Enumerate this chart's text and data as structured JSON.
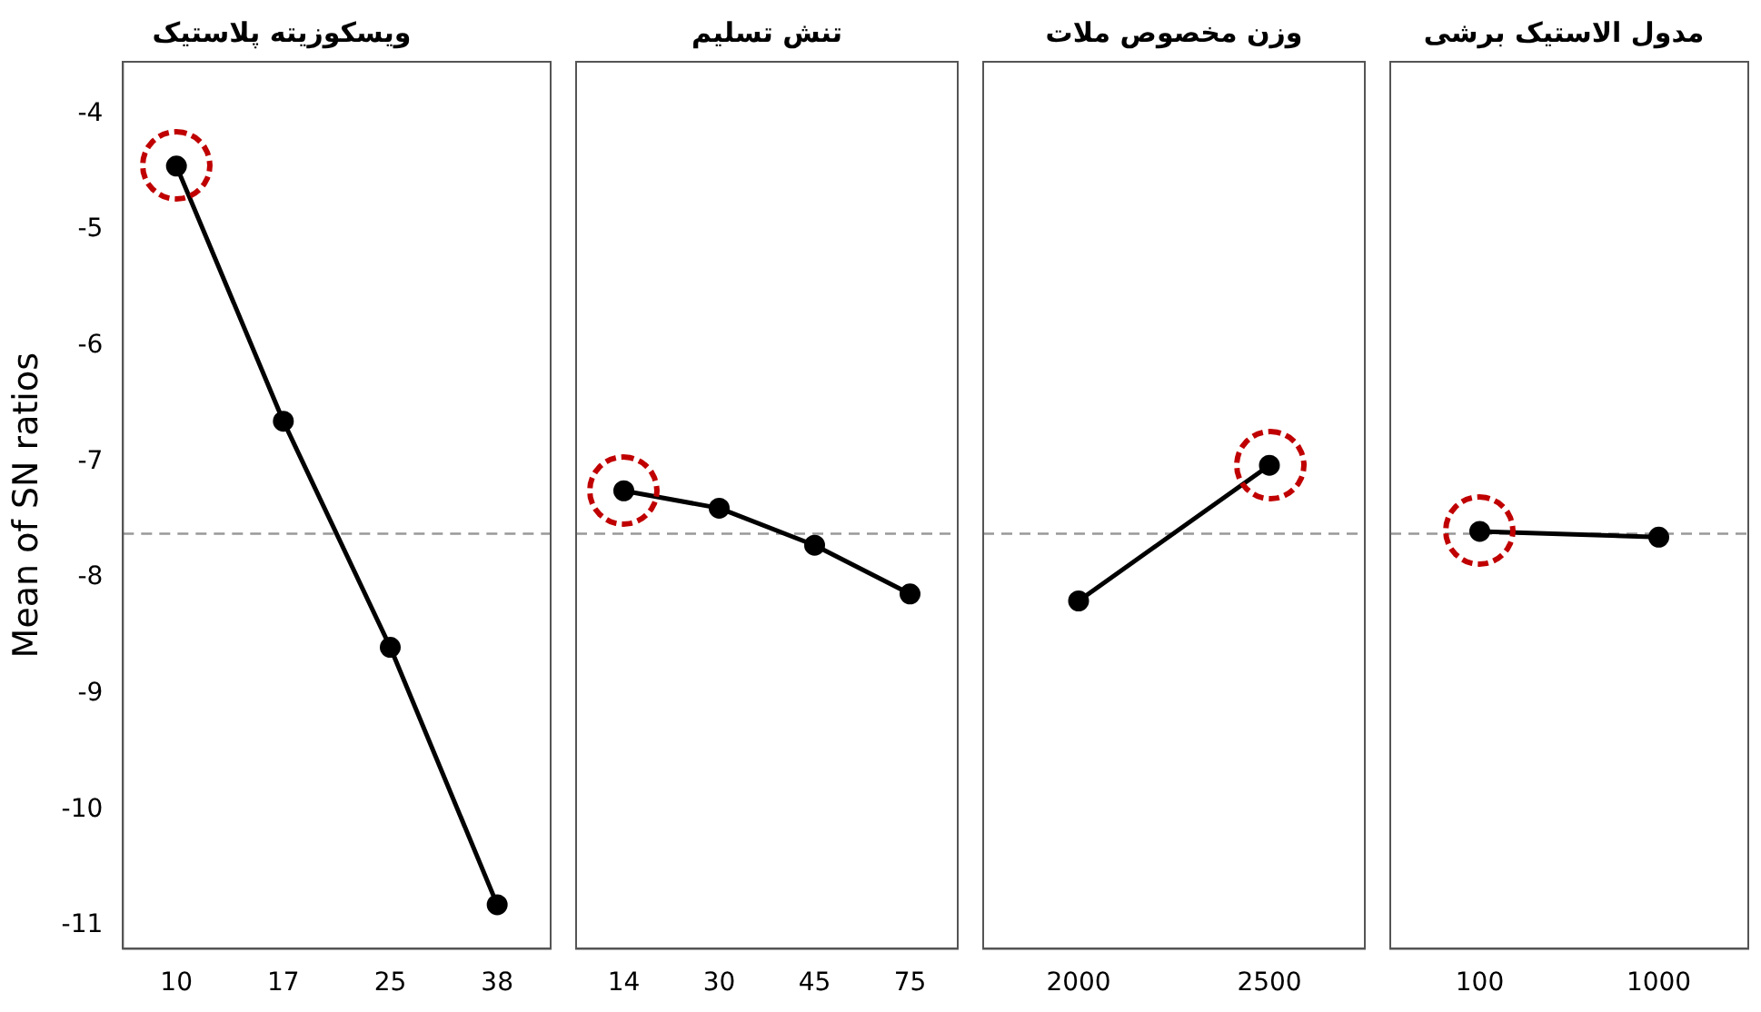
{
  "chart_data": [
    {
      "type": "line",
      "title": "ویسکوزیته پلاستیک",
      "ylabel": "Mean of SN ratios",
      "categories": [
        "10",
        "17",
        "25",
        "38"
      ],
      "series": [
        {
          "color": "#000000",
          "values": [
            -4.45,
            -6.65,
            -8.6,
            -10.82
          ]
        }
      ],
      "ylim": [
        -11.2,
        -3.55
      ],
      "yticks": [
        -11,
        -10,
        -9,
        -8,
        -7,
        -6,
        -5,
        -4
      ],
      "grid": false,
      "legend": false,
      "marker": "circle",
      "line_style": "solid",
      "ref_lines": [
        {
          "axis": "y",
          "value": -7.62,
          "color": "#999999",
          "line_style": "dashed"
        }
      ]
    },
    {
      "type": "line",
      "title": "تنش تسلیم",
      "categories": [
        "14",
        "30",
        "45",
        "75"
      ],
      "series": [
        {
          "color": "#000000",
          "values": [
            -7.25,
            -7.4,
            -7.72,
            -8.14
          ]
        }
      ],
      "ylim": [
        -11.2,
        -3.55
      ],
      "tick_labels": "x",
      "grid": false,
      "legend": false,
      "marker": "circle",
      "line_style": "solid",
      "ref_lines": [
        {
          "axis": "y",
          "value": -7.62,
          "color": "#999999",
          "line_style": "dashed"
        }
      ]
    },
    {
      "type": "line",
      "title": "وزن مخصوص ملات",
      "categories": [
        "2000",
        "2500"
      ],
      "series": [
        {
          "color": "#000000",
          "values": [
            -8.2,
            -7.03
          ]
        }
      ],
      "ylim": [
        -11.2,
        -3.55
      ],
      "tick_labels": "x",
      "grid": false,
      "legend": false,
      "marker": "circle",
      "line_style": "solid",
      "ref_lines": [
        {
          "axis": "y",
          "value": -7.62,
          "color": "#999999",
          "line_style": "dashed"
        }
      ]
    },
    {
      "type": "line",
      "title": "مدول الاستیک برشی",
      "categories": [
        "100",
        "1000"
      ],
      "series": [
        {
          "color": "#000000",
          "values": [
            -7.6,
            -7.65
          ]
        }
      ],
      "ylim": [
        -11.2,
        -3.55
      ],
      "tick_labels": "x",
      "grid": false,
      "legend": false,
      "marker": "circle",
      "line_style": "solid",
      "ref_lines": [
        {
          "axis": "y",
          "value": -7.62,
          "color": "#999999",
          "line_style": "dashed"
        }
      ]
    }
  ]
}
